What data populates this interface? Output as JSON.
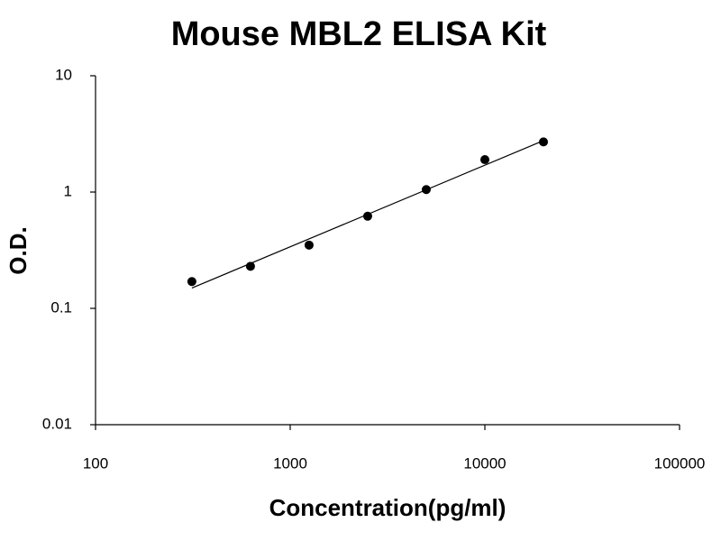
{
  "chart_data": {
    "type": "scatter",
    "title": "Mouse MBL2 ELISA Kit",
    "x_label": "Concentration(pg/ml)",
    "y_label": "O.D.",
    "x": [
      312.5,
      625,
      1250,
      2500,
      5000,
      10000,
      20000
    ],
    "values": [
      0.17,
      0.23,
      0.35,
      0.62,
      1.05,
      1.9,
      2.7
    ],
    "color": "#000000",
    "log_x": true,
    "log_y": true,
    "xlim": [
      100,
      100000
    ],
    "xticks": [
      100,
      1000,
      10000,
      100000
    ],
    "ylim": [
      0.01,
      10
    ],
    "yticks": [
      0.01,
      0.1,
      1,
      10
    ],
    "grid": false,
    "trendline": "power"
  }
}
